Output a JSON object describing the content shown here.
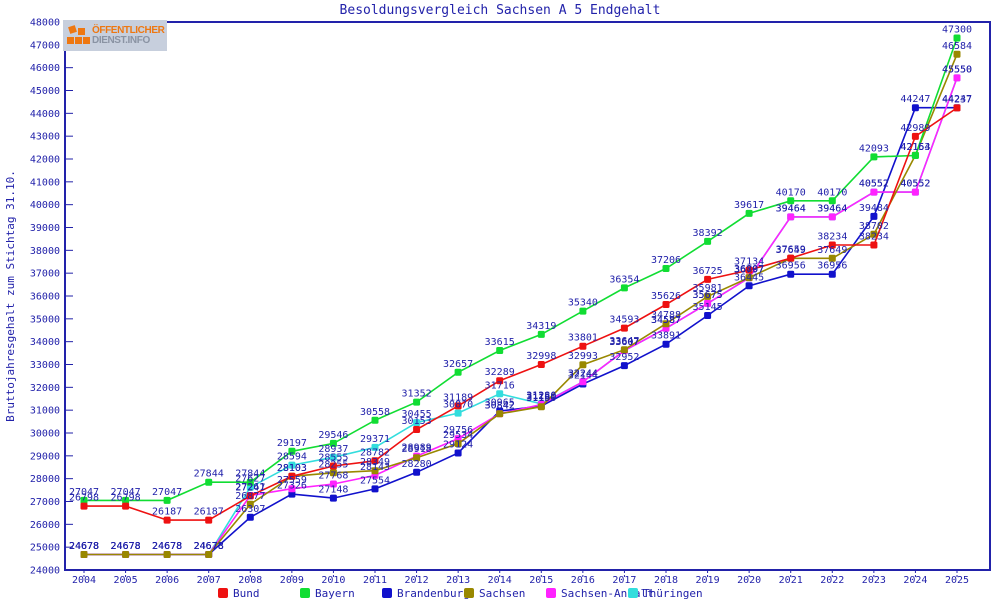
{
  "title": "Besoldungsvergleich Sachsen A 5 Endgehalt",
  "y_axis_label": "Bruttojahresgehalt zum Stichtag 31.10.",
  "logo": {
    "line1": "ÖFFENTLICHER",
    "line2": "DIENST.INFO"
  },
  "axis_color": "#2222aa",
  "label_color": "#2222aa",
  "chart_data": {
    "type": "line",
    "x": [
      2004,
      2005,
      2006,
      2007,
      2008,
      2009,
      2010,
      2011,
      2012,
      2013,
      2014,
      2015,
      2016,
      2017,
      2018,
      2019,
      2020,
      2021,
      2022,
      2023,
      2024,
      2025
    ],
    "ylim": [
      24000,
      48000
    ],
    "ytick_step": 1000,
    "grid": false,
    "legend_position": "bottom",
    "series": [
      {
        "name": "Bund",
        "color": "#ee1111",
        "values": [
          26798,
          26798,
          26187,
          26187,
          27247,
          28103,
          28555,
          28782,
          30153,
          31189,
          32289,
          32998,
          33801,
          34593,
          35626,
          36725,
          37134,
          37659,
          38234,
          38234,
          42989,
          44237
        ]
      },
      {
        "name": "Bayern",
        "color": "#11dd33",
        "values": [
          27047,
          27047,
          27047,
          27844,
          27844,
          29197,
          29546,
          30558,
          31352,
          32657,
          33615,
          34319,
          35340,
          36354,
          37206,
          38392,
          39617,
          40170,
          40170,
          42093,
          42154,
          47300
        ]
      },
      {
        "name": "Brandenburg",
        "color": "#1111cc",
        "values": [
          24678,
          24678,
          24678,
          24678,
          26307,
          27326,
          27148,
          27554,
          28280,
          29124,
          30965,
          31180,
          32144,
          32952,
          33891,
          35145,
          36445,
          36956,
          36956,
          39484,
          44247,
          44247
        ]
      },
      {
        "name": "Sachsen",
        "color": "#998800",
        "values": [
          24678,
          24678,
          24678,
          24678,
          26877,
          28103,
          28255,
          28349,
          28918,
          29534,
          30842,
          31150,
          32993,
          33647,
          34788,
          35981,
          36807,
          37649,
          37649,
          38702,
          42163,
          46584
        ]
      },
      {
        "name": "Sachsen-Anhalt",
        "color": "#ff22ff",
        "values": [
          24678,
          24678,
          24678,
          24678,
          27261,
          27559,
          27768,
          28143,
          28989,
          29756,
          30842,
          31250,
          32244,
          33607,
          34587,
          35675,
          36797,
          39464,
          39464,
          40552,
          40552,
          45550
        ]
      },
      {
        "name": "Thüringen",
        "color": "#33dddd",
        "values": [
          24678,
          24678,
          24678,
          24678,
          27627,
          28594,
          28937,
          29371,
          30455,
          30870,
          31716,
          31280,
          32244,
          33607,
          34587,
          35675,
          36797,
          39464,
          39464,
          40552,
          40552,
          45550
        ]
      }
    ]
  }
}
